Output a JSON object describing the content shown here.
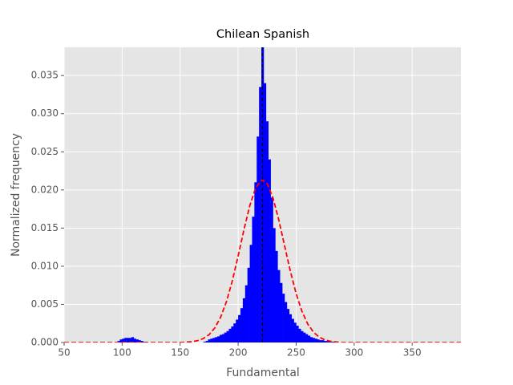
{
  "chart_data": {
    "type": "histogram",
    "title": "Chilean Spanish",
    "xlabel": "Fundamental",
    "ylabel": "Normalized frequency",
    "color": "#0000ff",
    "bins": [
      90,
      92,
      94,
      96,
      98,
      100,
      102,
      104,
      106,
      108,
      110,
      112,
      114,
      116,
      118,
      120,
      122,
      124,
      126,
      128,
      130,
      132,
      134,
      136,
      138,
      140,
      142,
      144,
      146,
      148,
      150,
      152,
      154,
      156,
      158,
      160,
      162,
      164,
      166,
      168,
      170,
      172,
      174,
      176,
      178,
      180,
      182,
      184,
      186,
      188,
      190,
      192,
      194,
      196,
      198,
      200,
      202,
      204,
      206,
      208,
      210,
      212,
      214,
      216,
      218,
      220,
      222,
      224,
      226,
      228,
      230,
      232,
      234,
      236,
      238,
      240,
      242,
      244,
      246,
      248,
      250,
      252,
      254,
      256,
      258,
      260,
      262,
      264,
      266,
      268,
      270,
      272,
      274,
      276,
      278,
      280,
      282,
      284,
      286,
      288,
      290
    ],
    "values": [
      0,
      0,
      0,
      0.0002,
      0.0004,
      0.0005,
      0.0006,
      0.0006,
      0.0006,
      0.0007,
      0.0005,
      0.0004,
      0.0003,
      0.0002,
      0.0001,
      0.0001,
      0,
      0,
      0,
      0,
      0,
      0,
      0,
      0,
      0,
      0,
      0,
      0,
      0,
      0,
      0,
      0,
      0,
      0,
      0,
      0,
      0,
      0,
      0,
      0,
      0.0001,
      0.0002,
      0.0004,
      0.0005,
      0.0006,
      0.0007,
      0.0008,
      0.001,
      0.0011,
      0.0013,
      0.0015,
      0.0018,
      0.0021,
      0.0025,
      0.003,
      0.0036,
      0.0045,
      0.0058,
      0.0075,
      0.0098,
      0.0128,
      0.0165,
      0.021,
      0.027,
      0.0335,
      0.0387,
      0.034,
      0.029,
      0.024,
      0.019,
      0.015,
      0.012,
      0.0095,
      0.0078,
      0.0064,
      0.0053,
      0.0044,
      0.0037,
      0.0031,
      0.0026,
      0.0022,
      0.0018,
      0.0015,
      0.0013,
      0.0011,
      0.0009,
      0.0007,
      0.0006,
      0.0005,
      0.0004,
      0.0003,
      0.0003,
      0.0002,
      0.0002,
      0.0001,
      0.0001,
      0.0001,
      0,
      0,
      0
    ],
    "fit": {
      "color": "#ff0000",
      "dashed": true,
      "x": [
        50,
        100,
        150,
        155,
        160,
        165,
        170,
        175,
        180,
        185,
        190,
        195,
        200,
        205,
        210,
        215,
        220,
        221,
        225,
        230,
        235,
        240,
        245,
        250,
        255,
        260,
        265,
        270,
        275,
        280,
        285,
        290,
        350,
        392
      ],
      "values": [
        0,
        0,
        0,
        4e-05,
        0.0001,
        0.00024,
        0.00052,
        0.00103,
        0.00193,
        0.00334,
        0.00539,
        0.0081,
        0.01134,
        0.01477,
        0.01792,
        0.02023,
        0.02127,
        0.0213,
        0.02082,
        0.01897,
        0.01609,
        0.01271,
        0.00935,
        0.0064,
        0.00408,
        0.00242,
        0.00134,
        0.00069,
        0.00033,
        0.00015,
        6e-05,
        0,
        0,
        0
      ]
    },
    "vline": {
      "x": 221,
      "color": "#000000",
      "dashed": true
    },
    "xlim": [
      50,
      392
    ],
    "ylim": [
      0,
      0.0387
    ],
    "xticks": [
      50,
      100,
      150,
      200,
      250,
      300,
      350
    ],
    "yticks": [
      {
        "value": 0,
        "label": "0.000"
      },
      {
        "value": 0.005,
        "label": "0.005"
      },
      {
        "value": 0.01,
        "label": "0.010"
      },
      {
        "value": 0.015,
        "label": "0.015"
      },
      {
        "value": 0.02,
        "label": "0.020"
      },
      {
        "value": 0.025,
        "label": "0.025"
      },
      {
        "value": 0.03,
        "label": "0.030"
      },
      {
        "value": 0.035,
        "label": "0.035"
      }
    ],
    "grid": true
  }
}
